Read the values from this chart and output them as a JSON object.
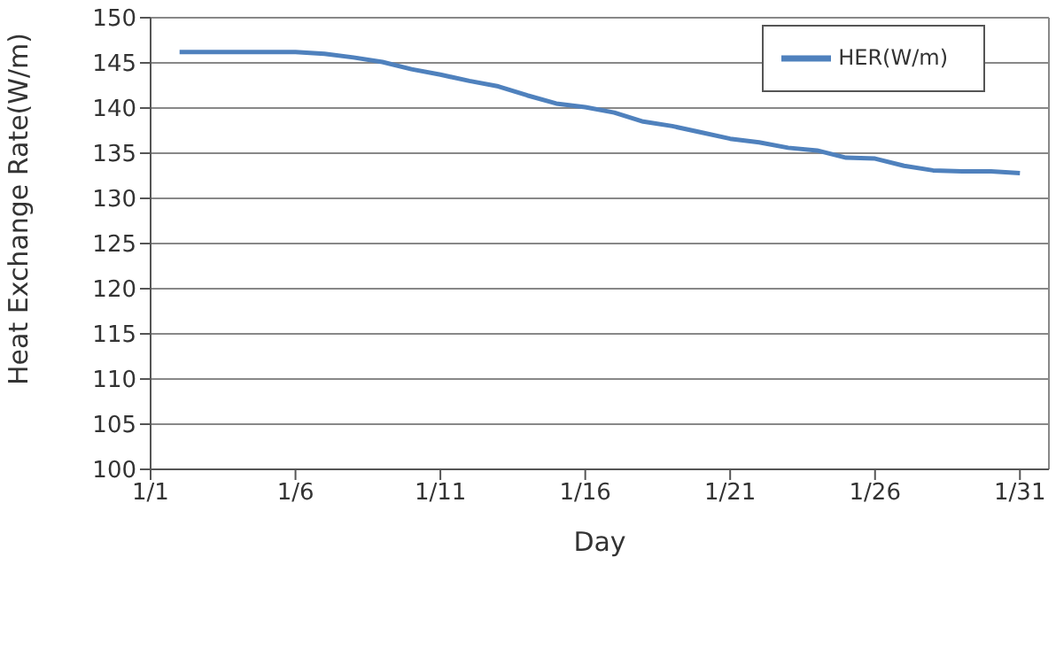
{
  "chart_data": {
    "type": "line",
    "xlabel": "Day",
    "ylabel": "Heat Exchange Rate(W/m)",
    "x": [
      "--01-02",
      "--01-03",
      "--01-04",
      "--01-05",
      "--01-06",
      "--01-07",
      "--01-08",
      "--01-09",
      "--01-10",
      "--01-11",
      "--01-12",
      "--01-13",
      "--01-14",
      "--01-15",
      "--01-16",
      "--01-17",
      "--01-18",
      "--01-19",
      "--01-20",
      "--01-21",
      "--01-22",
      "--01-23",
      "--01-24",
      "--01-25",
      "--01-26",
      "--01-27",
      "--01-28",
      "--01-29",
      "--01-30",
      "--01-31"
    ],
    "series": [
      {
        "name": "HER(W/m)",
        "color": "#4f81bd",
        "values": [
          146.2,
          146.2,
          146.2,
          146.2,
          146.2,
          146.0,
          145.6,
          145.1,
          144.3,
          143.7,
          143.0,
          142.4,
          141.4,
          140.5,
          140.1,
          139.5,
          138.5,
          138.0,
          137.3,
          136.6,
          136.2,
          135.6,
          135.3,
          134.5,
          134.4,
          133.6,
          133.1,
          133.0,
          133.0,
          132.8
        ]
      }
    ],
    "xlim": [
      "--01-01",
      "--02-01"
    ],
    "xticks": [
      {
        "value": "--01-01",
        "label": "1/1"
      },
      {
        "value": "--01-06",
        "label": "1/6"
      },
      {
        "value": "--01-11",
        "label": "1/11"
      },
      {
        "value": "--01-16",
        "label": "1/16"
      },
      {
        "value": "--01-21",
        "label": "1/21"
      },
      {
        "value": "--01-26",
        "label": "1/26"
      },
      {
        "value": "--01-31",
        "label": "1/31"
      }
    ],
    "ylim": [
      100,
      150
    ],
    "yticks": [
      100,
      105,
      110,
      115,
      120,
      125,
      130,
      135,
      140,
      145,
      150
    ],
    "grid": "y",
    "legend": "top right",
    "marker": "none",
    "line_style": "solid"
  }
}
